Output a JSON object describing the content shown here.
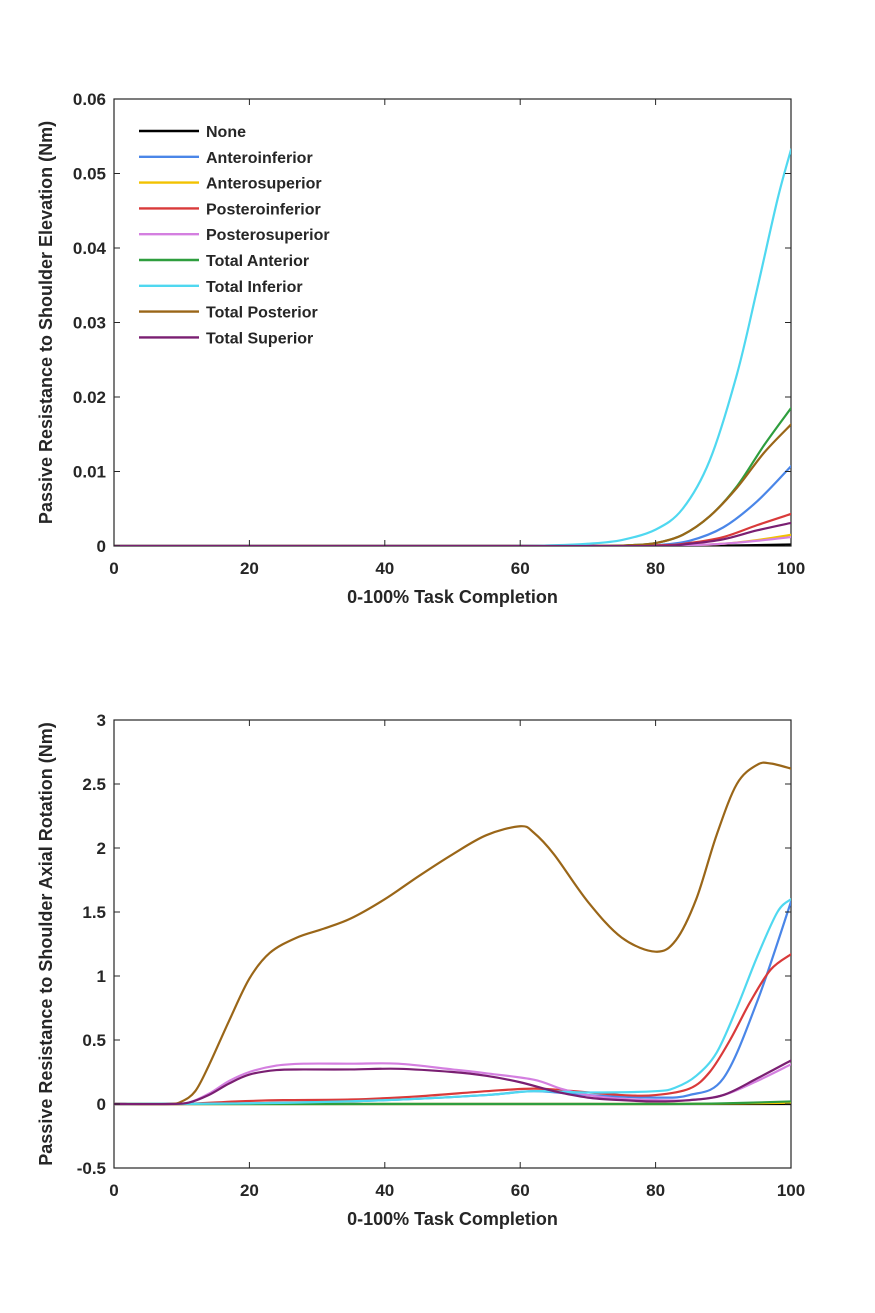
{
  "chart_data": [
    {
      "type": "line",
      "xlabel": "0-100% Task Completion",
      "ylabel": "Passive Resistance to Shoulder Elevation (Nm)",
      "xlim": [
        0,
        100
      ],
      "ylim": [
        0,
        0.06
      ],
      "xticks": [
        "0",
        "20",
        "40",
        "60",
        "80",
        "100"
      ],
      "yticks": [
        "0",
        "0.01",
        "0.02",
        "0.03",
        "0.04",
        "0.05",
        "0.06"
      ],
      "xtick_values": [
        0,
        20,
        40,
        60,
        80,
        100
      ],
      "ytick_values": [
        0,
        0.01,
        0.02,
        0.03,
        0.04,
        0.05,
        0.06
      ],
      "legend_position": "top-left",
      "series": [
        {
          "name": "None",
          "color": "#000000",
          "x": [
            0,
            60,
            80,
            90,
            100
          ],
          "y": [
            0,
            0,
            0,
            5e-05,
            0.0002
          ]
        },
        {
          "name": "Anteroinferior",
          "color": "#4a86e8",
          "x": [
            0,
            60,
            75,
            80,
            85,
            90,
            95,
            100
          ],
          "y": [
            0,
            0,
            0,
            0.0001,
            0.0007,
            0.0025,
            0.006,
            0.0107
          ]
        },
        {
          "name": "Anterosuperior",
          "color": "#f2c200",
          "x": [
            0,
            60,
            80,
            85,
            90,
            95,
            100
          ],
          "y": [
            0,
            0,
            0,
            0.0001,
            0.0003,
            0.0008,
            0.0015
          ]
        },
        {
          "name": "Posteroinferior",
          "color": "#d93a3a",
          "x": [
            0,
            60,
            80,
            85,
            90,
            95,
            100
          ],
          "y": [
            0,
            0,
            0.0001,
            0.0004,
            0.0012,
            0.0028,
            0.0043
          ]
        },
        {
          "name": "Posterosuperior",
          "color": "#d47fe0",
          "x": [
            0,
            60,
            80,
            85,
            90,
            95,
            100
          ],
          "y": [
            0,
            0,
            0,
            0.0001,
            0.0003,
            0.0007,
            0.0012
          ]
        },
        {
          "name": "Total Anterior",
          "color": "#2e9e3e",
          "x": [
            0,
            60,
            72,
            76,
            80,
            84,
            88,
            92,
            96,
            100
          ],
          "y": [
            0,
            0,
            0,
            0.0001,
            0.0004,
            0.0015,
            0.004,
            0.008,
            0.0135,
            0.0185
          ]
        },
        {
          "name": "Total Inferior",
          "color": "#4fd8f0",
          "x": [
            0,
            55,
            65,
            70,
            75,
            80,
            84,
            88,
            92,
            95,
            98,
            100
          ],
          "y": [
            0,
            0,
            0.0001,
            0.0003,
            0.0008,
            0.0022,
            0.005,
            0.0115,
            0.023,
            0.0345,
            0.0465,
            0.0532
          ]
        },
        {
          "name": "Total Posterior",
          "color": "#9a6618",
          "x": [
            0,
            60,
            72,
            76,
            80,
            84,
            88,
            92,
            96,
            100
          ],
          "y": [
            0,
            0,
            0,
            0.0001,
            0.0004,
            0.0015,
            0.004,
            0.0078,
            0.0125,
            0.0163
          ]
        },
        {
          "name": "Total Superior",
          "color": "#7a1f72",
          "x": [
            0,
            60,
            80,
            85,
            90,
            95,
            100
          ],
          "y": [
            0,
            0,
            0,
            0.0003,
            0.0009,
            0.0021,
            0.0031
          ]
        }
      ]
    },
    {
      "type": "line",
      "xlabel": "0-100% Task Completion",
      "ylabel": "Passive Resistance to Shoulder Axial Rotation (Nm)",
      "xlim": [
        0,
        100
      ],
      "ylim": [
        -0.5,
        3
      ],
      "xticks": [
        "0",
        "20",
        "40",
        "60",
        "80",
        "100"
      ],
      "yticks": [
        "-0.5",
        "0",
        "0.5",
        "1",
        "1.5",
        "2",
        "2.5",
        "3"
      ],
      "xtick_values": [
        0,
        20,
        40,
        60,
        80,
        100
      ],
      "ytick_values": [
        -0.5,
        0,
        0.5,
        1,
        1.5,
        2,
        2.5,
        3
      ],
      "series": [
        {
          "name": "None",
          "color": "#000000",
          "x": [
            0,
            100
          ],
          "y": [
            0,
            0
          ]
        },
        {
          "name": "Anteroinferior",
          "color": "#4a86e8",
          "x": [
            0,
            20,
            40,
            55,
            62,
            70,
            80,
            85,
            90,
            95,
            100
          ],
          "y": [
            0,
            0.005,
            0.03,
            0.07,
            0.1,
            0.07,
            0.05,
            0.07,
            0.2,
            0.8,
            1.58
          ]
        },
        {
          "name": "Anterosuperior",
          "color": "#f2c200",
          "x": [
            0,
            20,
            40,
            60,
            70,
            80,
            90,
            100
          ],
          "y": [
            0,
            0,
            0,
            0,
            0,
            0,
            0.003,
            0.01
          ]
        },
        {
          "name": "Posteroinferior",
          "color": "#d93a3a",
          "x": [
            0,
            10,
            18,
            25,
            35,
            45,
            55,
            62,
            68,
            75,
            80,
            85,
            88,
            91,
            94,
            97,
            100
          ],
          "y": [
            0,
            0,
            0.02,
            0.03,
            0.035,
            0.06,
            0.1,
            0.12,
            0.1,
            0.07,
            0.07,
            0.12,
            0.25,
            0.5,
            0.8,
            1.05,
            1.17
          ]
        },
        {
          "name": "Posterosuperior",
          "color": "#d47fe0",
          "x": [
            0,
            8,
            11,
            14,
            17,
            20,
            24,
            28,
            35,
            42,
            50,
            55,
            62,
            66,
            70,
            75,
            80,
            85,
            90,
            95,
            100
          ],
          "y": [
            0,
            0,
            0.01,
            0.08,
            0.18,
            0.25,
            0.3,
            0.315,
            0.315,
            0.315,
            0.27,
            0.24,
            0.19,
            0.12,
            0.07,
            0.04,
            0.03,
            0.03,
            0.07,
            0.18,
            0.31
          ]
        },
        {
          "name": "Total Anterior",
          "color": "#2e9e3e",
          "x": [
            0,
            20,
            40,
            60,
            70,
            80,
            90,
            100
          ],
          "y": [
            0,
            0,
            0,
            0,
            0,
            0,
            0.005,
            0.02
          ]
        },
        {
          "name": "Total Inferior",
          "color": "#4fd8f0",
          "x": [
            0,
            20,
            40,
            55,
            62,
            70,
            80,
            83,
            86,
            89,
            92,
            95,
            98,
            100
          ],
          "y": [
            0,
            0.005,
            0.03,
            0.07,
            0.1,
            0.09,
            0.1,
            0.13,
            0.22,
            0.4,
            0.75,
            1.15,
            1.5,
            1.6
          ]
        },
        {
          "name": "Total Posterior",
          "color": "#9a6618",
          "x": [
            0,
            8,
            10,
            12,
            14,
            17,
            20,
            23,
            27,
            31,
            35,
            40,
            45,
            50,
            55,
            60,
            62,
            65,
            70,
            75,
            80,
            83,
            86,
            89,
            92,
            95,
            97,
            100
          ],
          "y": [
            0,
            0,
            0.02,
            0.1,
            0.3,
            0.65,
            0.98,
            1.18,
            1.3,
            1.37,
            1.45,
            1.6,
            1.78,
            1.95,
            2.1,
            2.17,
            2.12,
            1.95,
            1.58,
            1.3,
            1.19,
            1.28,
            1.6,
            2.1,
            2.5,
            2.65,
            2.66,
            2.62
          ]
        },
        {
          "name": "Total Superior",
          "color": "#7a1f72",
          "x": [
            0,
            8,
            11,
            14,
            17,
            20,
            24,
            28,
            35,
            42,
            50,
            55,
            60,
            65,
            70,
            75,
            80,
            85,
            90,
            95,
            100
          ],
          "y": [
            0,
            0,
            0.01,
            0.07,
            0.16,
            0.23,
            0.265,
            0.27,
            0.27,
            0.275,
            0.25,
            0.22,
            0.17,
            0.1,
            0.05,
            0.03,
            0.02,
            0.03,
            0.07,
            0.2,
            0.34
          ]
        }
      ]
    }
  ]
}
